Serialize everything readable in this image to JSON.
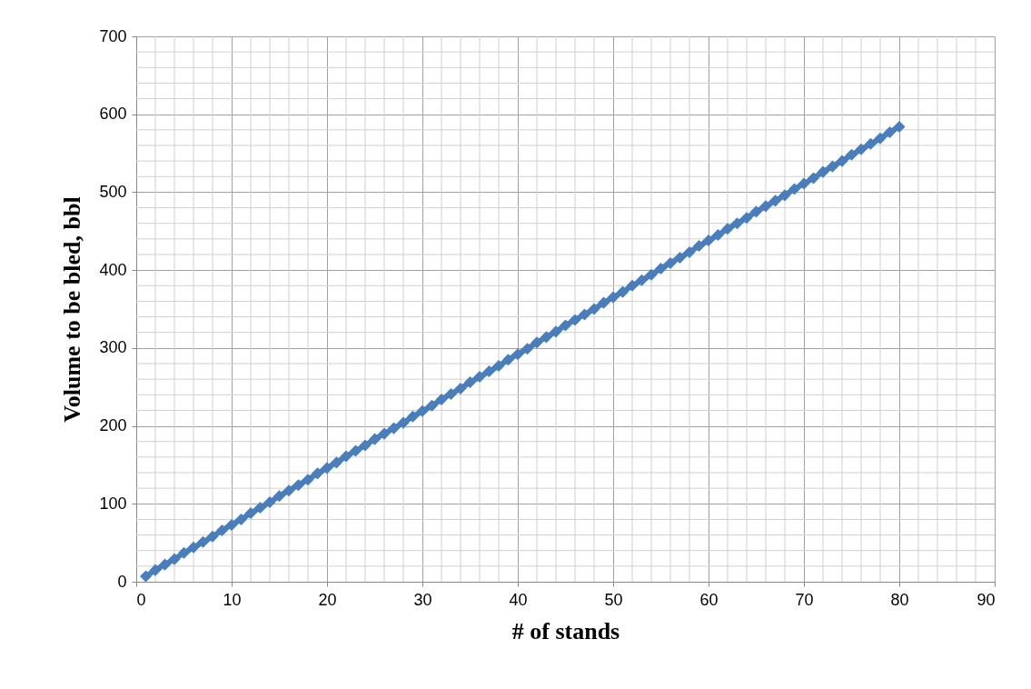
{
  "chart_data": {
    "type": "line",
    "marker": "diamond",
    "xlabel": "# of stands",
    "ylabel": "Volume to be bled, bbl",
    "x": [
      1,
      2,
      3,
      4,
      5,
      6,
      7,
      8,
      9,
      10,
      11,
      12,
      13,
      14,
      15,
      16,
      17,
      18,
      19,
      20,
      21,
      22,
      23,
      24,
      25,
      26,
      27,
      28,
      29,
      30,
      31,
      32,
      33,
      34,
      35,
      36,
      37,
      38,
      39,
      40,
      41,
      42,
      43,
      44,
      45,
      46,
      47,
      48,
      49,
      50,
      51,
      52,
      53,
      54,
      55,
      56,
      57,
      58,
      59,
      60,
      61,
      62,
      63,
      64,
      65,
      66,
      67,
      68,
      69,
      70,
      71,
      72,
      73,
      74,
      75,
      76,
      77,
      78,
      79,
      80
    ],
    "series": [
      {
        "color": "#4a7ebb",
        "values": [
          7,
          15,
          22,
          29,
          37,
          44,
          51,
          58,
          66,
          73,
          80,
          88,
          95,
          102,
          110,
          117,
          124,
          131,
          139,
          146,
          153,
          161,
          168,
          175,
          183,
          190,
          197,
          204,
          212,
          219,
          226,
          234,
          241,
          248,
          256,
          263,
          270,
          277,
          285,
          292,
          299,
          307,
          314,
          321,
          329,
          336,
          343,
          350,
          358,
          365,
          372,
          380,
          387,
          394,
          402,
          409,
          416,
          423,
          431,
          438,
          445,
          453,
          460,
          467,
          475,
          482,
          489,
          496,
          504,
          511,
          518,
          526,
          533,
          540,
          548,
          555,
          562,
          569,
          577,
          584
        ]
      }
    ],
    "xlim": [
      0,
      90
    ],
    "xticks": [
      0,
      10,
      20,
      30,
      40,
      50,
      60,
      70,
      80,
      90
    ],
    "ylim": [
      0,
      700
    ],
    "yticks": [
      0,
      100,
      200,
      300,
      400,
      500,
      600,
      700
    ],
    "grid": true,
    "legend": false
  }
}
